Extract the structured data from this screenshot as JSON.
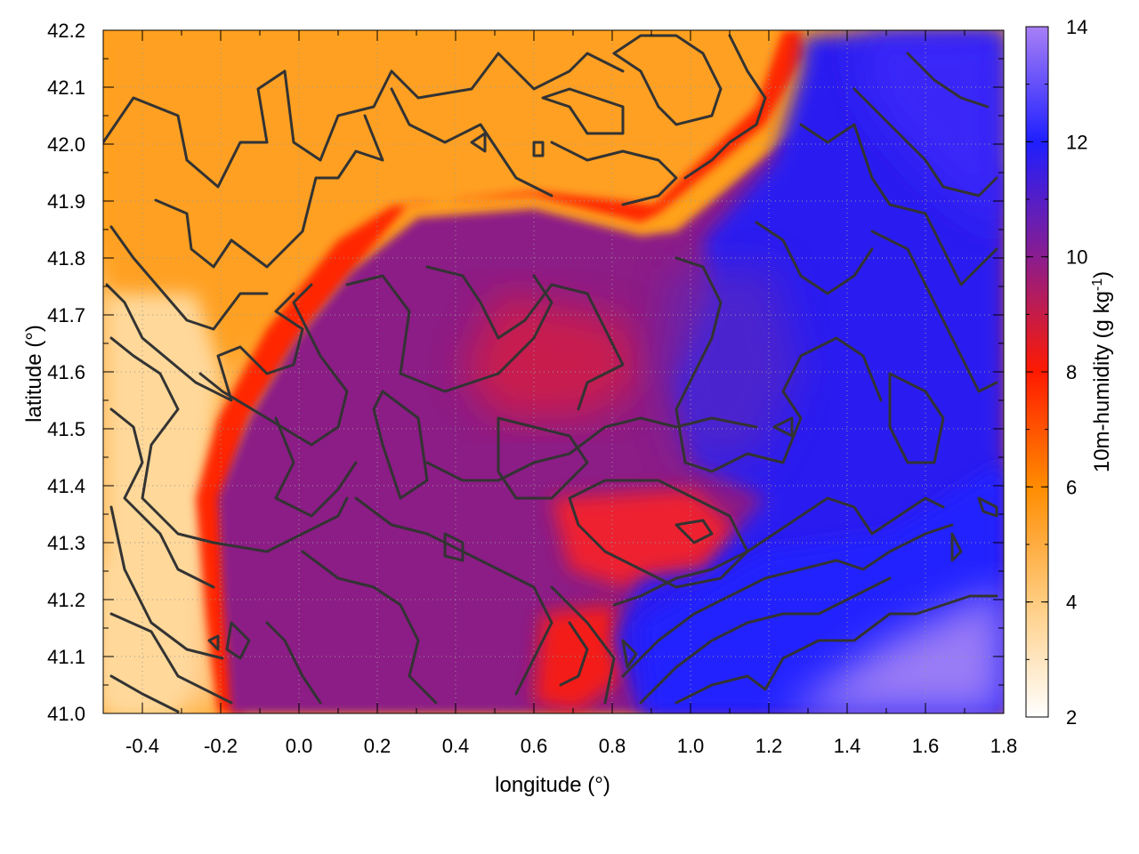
{
  "chart_data": {
    "type": "heatmap",
    "title": "",
    "xlabel": "longitude (°)",
    "ylabel": "latitude (°)",
    "colorbar_label": "10m-humidity (g kg",
    "colorbar_label_sup": "-1",
    "colorbar_label_end": ")",
    "xlim": [
      -0.5,
      1.8
    ],
    "ylim": [
      41.0,
      42.2
    ],
    "zlim": [
      2,
      14
    ],
    "x_ticks": [
      -0.4,
      -0.2,
      0.0,
      0.2,
      0.4,
      0.6,
      0.8,
      1.0,
      1.2,
      1.4,
      1.6,
      1.8
    ],
    "x_tick_labels": [
      "-0.4",
      "-0.2",
      "0.0",
      "0.2",
      "0.4",
      "0.6",
      "0.8",
      "1.0",
      "1.2",
      "1.4",
      "1.6",
      "1.8"
    ],
    "y_ticks": [
      41.0,
      41.1,
      41.2,
      41.3,
      41.4,
      41.5,
      41.6,
      41.7,
      41.8,
      41.9,
      42.0,
      42.1,
      42.2
    ],
    "y_tick_labels": [
      "41.0",
      "41.1",
      "41.2",
      "41.3",
      "41.4",
      "41.5",
      "41.6",
      "41.7",
      "41.8",
      "41.9",
      "42.0",
      "42.1",
      "42.2"
    ],
    "colorbar_ticks": [
      2,
      4,
      6,
      8,
      10,
      12,
      14
    ],
    "colorbar_tick_labels": [
      "2",
      "4",
      "6",
      "8",
      "10",
      "12",
      "14"
    ],
    "colormap": [
      {
        "value": 2,
        "color": "#ffffff"
      },
      {
        "value": 4,
        "color": "#ffcc80"
      },
      {
        "value": 6,
        "color": "#ff8c00"
      },
      {
        "value": 8,
        "color": "#ff1a00"
      },
      {
        "value": 10,
        "color": "#8a1d8f"
      },
      {
        "value": 12,
        "color": "#1f1fff"
      },
      {
        "value": 14,
        "color": "#a880f5"
      }
    ],
    "grid": true,
    "contours": true
  }
}
